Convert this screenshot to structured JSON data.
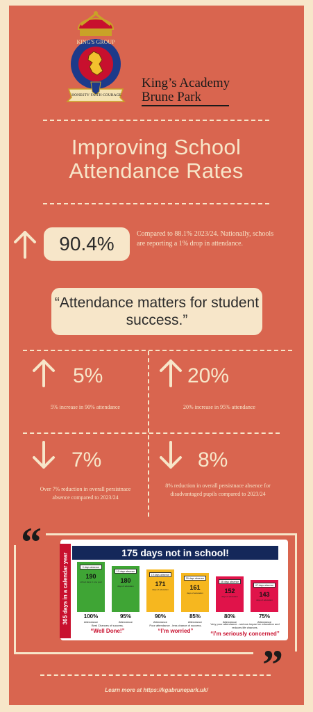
{
  "header": {
    "crest_ribbon_top": "KING'S GROUP",
    "crest_motto": "HONESTY·FAITH·COURAGE",
    "school_name_line1": "King’s Academy",
    "school_name_line2": "Brune Park"
  },
  "title": {
    "line1": "Improving School",
    "line2": "Attendance Rates"
  },
  "headline_stat": {
    "value": "90.4%",
    "description": "Compared to 88.1% 2023/24. Nationally, schools are reporting a 1% drop in attendance.",
    "direction": "up-arrow-icon"
  },
  "quote": "“Attendance matters for student success.”",
  "stats": [
    {
      "value": "5%",
      "caption": "5% increase in 90% attendance",
      "direction": "up-arrow-icon"
    },
    {
      "value": "20%",
      "caption": "20% increase in 95% attendance",
      "direction": "up-arrow-icon"
    },
    {
      "value": "7%",
      "caption": "Over 7% reduction in overall persistnace absence compared to 2023/24",
      "direction": "down-arrow-icon"
    },
    {
      "value": "8%",
      "caption": "8% reduction in overall persistnace absence for disadvantaged pupils compared to 2023/24",
      "direction": "down-arrow-icon"
    }
  ],
  "attendance_graphic": {
    "heading": "175 days not in school!",
    "side_label": "365 days in a calendar year",
    "bars": [
      {
        "absent": "0 days absence",
        "days": "190",
        "days_label": "school days in one year",
        "pct": "100%",
        "pct_label": "Attendance",
        "color": "#3fa535"
      },
      {
        "absent": "10 days absence",
        "days": "180",
        "days_label": "days of education",
        "pct": "95%",
        "pct_label": "Attendance",
        "color": "#3fa535"
      },
      {
        "absent": "19 days absence",
        "days": "171",
        "days_label": "days of education",
        "pct": "90%",
        "pct_label": "Attendance",
        "color": "#f6b71f"
      },
      {
        "absent": "29 days absence",
        "days": "161",
        "days_label": "days of education",
        "pct": "85%",
        "pct_label": "Attendance",
        "color": "#f6b71f"
      },
      {
        "absent": "38 days absence",
        "days": "152",
        "days_label": "days of education",
        "pct": "80%",
        "pct_label": "Attendance",
        "color": "#e0134a"
      },
      {
        "absent": "47 days absence",
        "days": "143",
        "days_label": "days of education",
        "pct": "75%",
        "pct_label": "Attendance",
        "color": "#e0134a"
      }
    ],
    "bands": [
      {
        "desc": "Best Chances of success.",
        "quote": "“Well Done!”"
      },
      {
        "desc": "Poor attendance - less chance of success.",
        "quote": "“I’m worried”"
      },
      {
        "desc": "Very poor attendance - serious impact on education and reduces life chances.",
        "quote": "“I’m seriously concerned”"
      }
    ]
  },
  "footer": "Learn more at https://kgabrunepark.uk/",
  "colors": {
    "panel": "#d9654f",
    "cream": "#f7e6c9",
    "navy": "#14285a",
    "red": "#c8102e"
  }
}
